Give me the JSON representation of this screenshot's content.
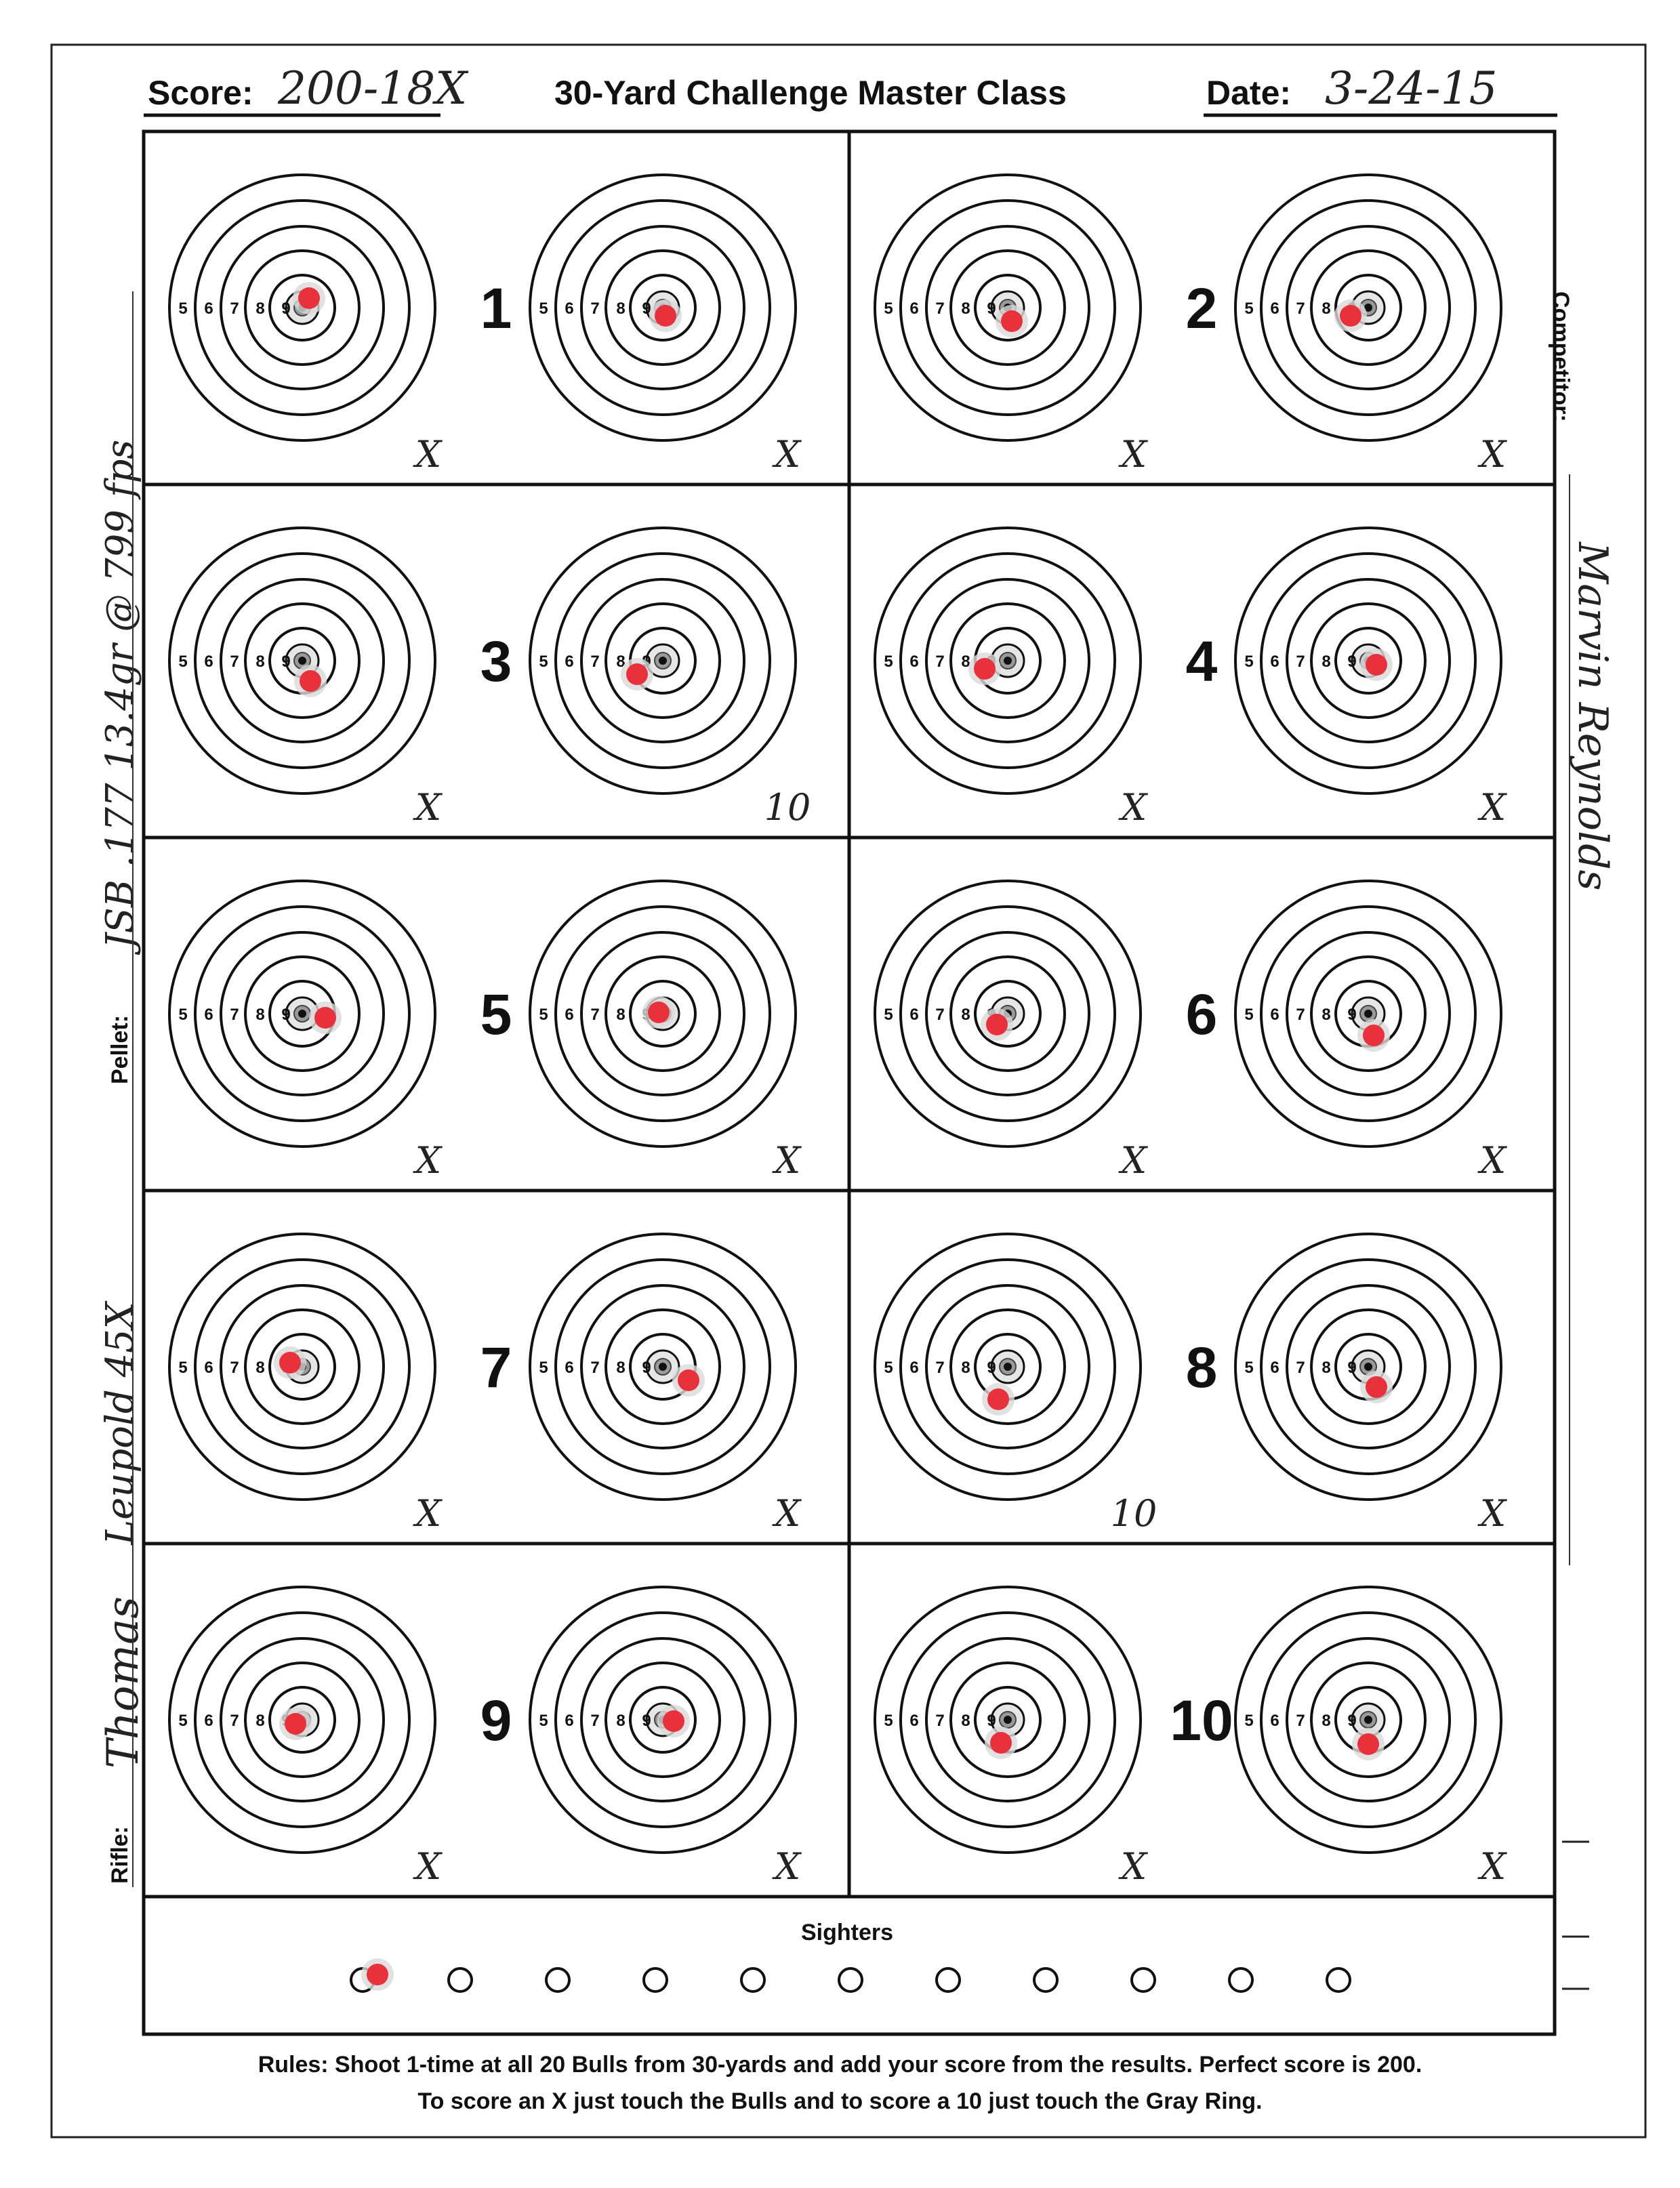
{
  "header": {
    "score_label": "Score:",
    "score_value": "200-18X",
    "title": "30-Yard Challenge Master Class",
    "date_label": "Date:",
    "date_value": "3-24-15"
  },
  "side": {
    "competitor_label": "Competitor:",
    "competitor_value": "Marvin Reynolds",
    "pellet_label": "Pellet:",
    "pellet_value": "JSB .177 13.4gr @ 799 fps",
    "scope_value": "Leupold 45X",
    "rifle_label": "Rifle:",
    "rifle_value": "Thomas"
  },
  "target_ring_labels": [
    "5",
    "6",
    "7",
    "8",
    "9"
  ],
  "targets": [
    {
      "number": "1",
      "left_score": "X",
      "right_score": "X"
    },
    {
      "number": "2",
      "left_score": "X",
      "right_score": "X"
    },
    {
      "number": "3",
      "left_score": "X",
      "right_score": "10"
    },
    {
      "number": "4",
      "left_score": "X",
      "right_score": "X"
    },
    {
      "number": "5",
      "left_score": "X",
      "right_score": "X"
    },
    {
      "number": "6",
      "left_score": "X",
      "right_score": "X"
    },
    {
      "number": "7",
      "left_score": "X",
      "right_score": "X"
    },
    {
      "number": "8",
      "left_score": "10",
      "right_score": "X"
    },
    {
      "number": "9",
      "left_score": "X",
      "right_score": "X"
    },
    {
      "number": "10",
      "left_score": "X",
      "right_score": "X"
    }
  ],
  "sighters": {
    "title": "Sighters",
    "count": 11,
    "hit_index": 0
  },
  "rules": {
    "line1": "Rules: Shoot 1-time at all 20 Bulls from 30-yards and add your score from the results. Perfect score is 200.",
    "line2": "To score an X just touch the Bulls and to score a 10 just touch the Gray Ring."
  },
  "colors": {
    "ink": "#111111",
    "hit": "#e8313a",
    "gray_ring": "#bdbdbd"
  }
}
